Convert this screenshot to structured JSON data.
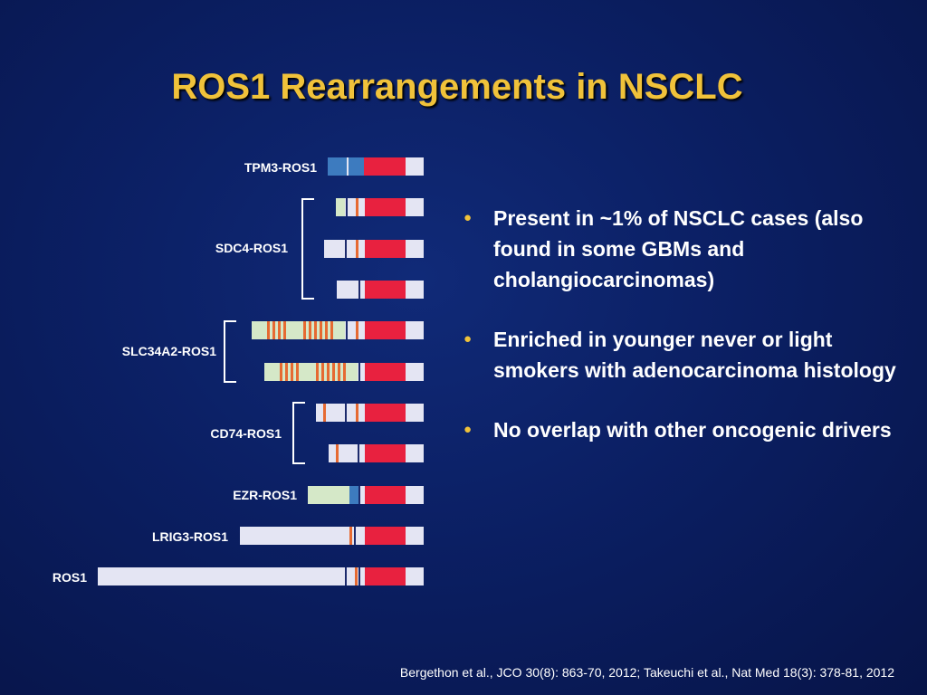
{
  "slide": {
    "title": "ROS1 Rearrangements in NSCLC",
    "citation": "Bergethon et al., JCO 30(8): 863-70, 2012; Takeuchi et al., Nat Med 18(3): 378-81, 2012"
  },
  "fusions": [
    {
      "label": "TPM3-ROS1"
    },
    {
      "label": "SDC4-ROS1"
    },
    {
      "label": "SLC34A2-ROS1"
    },
    {
      "label": "CD74-ROS1"
    },
    {
      "label": "EZR-ROS1"
    },
    {
      "label": "LRIG3-ROS1"
    },
    {
      "label": "ROS1"
    }
  ],
  "bullets": [
    "Present in ~1% of NSCLC cases (also found in some GBMs and cholangiocarcinomas)",
    "Enriched in younger never or light smokers with adenocarcinoma histology",
    "No overlap with other oncogenic drivers"
  ],
  "colors": {
    "title": "#f0c23a",
    "kinase_domain": "#e8213f",
    "transmembrane": "#e66a32",
    "coiled_coil": "#3d7bbf",
    "partner_domain": "#d5e8c8",
    "protein_body": "#e4e5f3",
    "bullet_dot": "#f0c23a"
  }
}
